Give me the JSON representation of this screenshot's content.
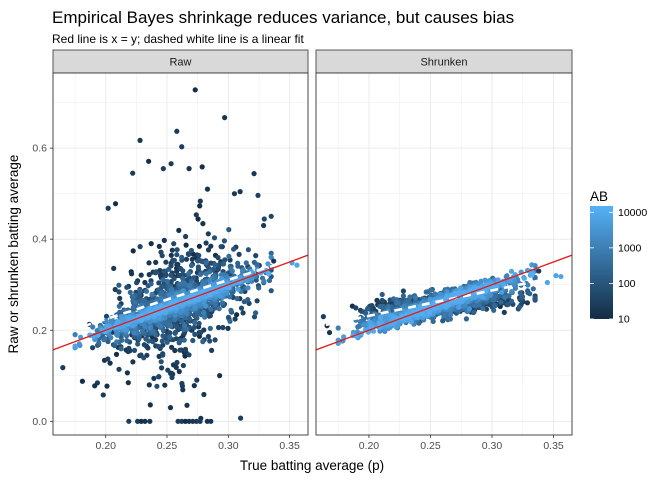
{
  "chart_data": {
    "type": "scatter",
    "title": "Empirical Bayes shrinkage reduces variance, but causes bias",
    "subtitle": "Red line is x = y; dashed white line is a linear fit",
    "xlabel": "True batting average (p)",
    "ylabel": "Raw or shrunken batting average",
    "xlim": [
      0.157,
      0.365
    ],
    "ylim": [
      -0.03,
      0.765
    ],
    "x_ticks": [
      0.2,
      0.25,
      0.3,
      0.35
    ],
    "x_tick_labels": [
      "0.20",
      "0.25",
      "0.30",
      "0.35"
    ],
    "y_ticks": [
      0.0,
      0.2,
      0.4,
      0.6
    ],
    "y_tick_labels": [
      "0.0",
      "0.2",
      "0.4",
      "0.6"
    ],
    "grid": true,
    "identity_line_color": "#e41a1c",
    "fit_line_color": "#ffffff",
    "color_scale": {
      "title": "AB",
      "scale": "log10",
      "domain": [
        10,
        15000
      ],
      "ticks": [
        10,
        100,
        1000,
        10000
      ],
      "tick_labels": [
        "10",
        "100",
        "1000",
        "10000"
      ],
      "low_color": "#132b43",
      "high_color": "#56b1f7",
      "legend_position": "right"
    },
    "panels": [
      {
        "strip_label": "Raw",
        "fit_line": {
          "x": [
            0.16,
            0.34
          ],
          "y": [
            0.19,
            0.345
          ]
        },
        "outliers": [
          {
            "x": 0.273,
            "y": 0.728
          },
          {
            "x": 0.297,
            "y": 0.667
          },
          {
            "x": 0.228,
            "y": 0.617
          },
          {
            "x": 0.258,
            "y": 0.637
          },
          {
            "x": 0.262,
            "y": 0.603
          },
          {
            "x": 0.235,
            "y": 0.571
          },
          {
            "x": 0.268,
            "y": 0.555
          },
          {
            "x": 0.321,
            "y": 0.544
          },
          {
            "x": 0.222,
            "y": 0.545
          },
          {
            "x": 0.247,
            "y": 0.555
          },
          {
            "x": 0.208,
            "y": 0.478
          },
          {
            "x": 0.283,
            "y": 0.51
          },
          {
            "x": 0.305,
            "y": 0.5
          },
          {
            "x": 0.202,
            "y": 0.468
          },
          {
            "x": 0.226,
            "y": 0.0
          },
          {
            "x": 0.229,
            "y": 0.0
          },
          {
            "x": 0.232,
            "y": 0.0
          },
          {
            "x": 0.236,
            "y": 0.0
          },
          {
            "x": 0.259,
            "y": 0.0
          },
          {
            "x": 0.262,
            "y": 0.0
          },
          {
            "x": 0.265,
            "y": 0.0
          },
          {
            "x": 0.268,
            "y": 0.0
          },
          {
            "x": 0.271,
            "y": 0.0
          },
          {
            "x": 0.274,
            "y": 0.0
          },
          {
            "x": 0.277,
            "y": 0.0
          },
          {
            "x": 0.181,
            "y": 0.088
          },
          {
            "x": 0.191,
            "y": 0.078
          },
          {
            "x": 0.198,
            "y": 0.058
          },
          {
            "x": 0.165,
            "y": 0.118
          },
          {
            "x": 0.352,
            "y": 0.348
          },
          {
            "x": 0.356,
            "y": 0.343
          },
          {
            "x": 0.337,
            "y": 0.352
          }
        ]
      },
      {
        "strip_label": "Shrunken",
        "fit_line": {
          "x": [
            0.165,
            0.34
          ],
          "y": [
            0.212,
            0.31
          ]
        },
        "outliers": [
          {
            "x": 0.352,
            "y": 0.32
          },
          {
            "x": 0.356,
            "y": 0.318
          },
          {
            "x": 0.345,
            "y": 0.305
          },
          {
            "x": 0.338,
            "y": 0.33
          },
          {
            "x": 0.163,
            "y": 0.23
          },
          {
            "x": 0.166,
            "y": 0.21
          },
          {
            "x": 0.168,
            "y": 0.195
          }
        ]
      }
    ]
  }
}
